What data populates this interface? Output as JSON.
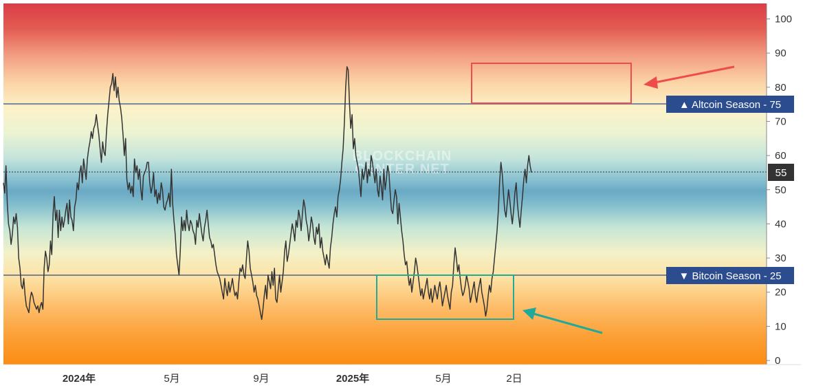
{
  "chart_data": {
    "type": "line",
    "x_tick_labels": [
      "2024年",
      "5月",
      "9月",
      "2025年",
      "5月",
      "2日"
    ],
    "y_ticks": [
      0,
      10,
      20,
      30,
      40,
      50,
      60,
      70,
      80,
      90,
      100
    ],
    "ylim": [
      0,
      100
    ],
    "grid": false,
    "current_value_label": "55",
    "thresholds": [
      {
        "label": "▲ Altcoin Season - 75",
        "value": 75
      },
      {
        "label": "▼ Bitcoin Season - 25",
        "value": 25
      }
    ],
    "watermark": [
      "BLOCKCHAIN",
      "CENTER.NET"
    ],
    "series": [
      {
        "values": [
          52,
          49,
          57,
          46,
          40,
          38,
          34,
          37,
          42,
          40,
          43,
          39,
          30,
          27,
          22,
          21,
          24,
          19,
          16,
          15,
          14,
          18,
          20,
          19,
          17,
          16,
          15,
          16,
          14,
          16,
          17,
          15,
          27,
          32,
          30,
          26,
          28,
          35,
          31,
          43,
          48,
          41,
          44,
          36,
          44,
          38,
          42,
          39,
          41,
          44,
          46,
          40,
          47,
          42,
          41,
          38,
          45,
          47,
          52,
          50,
          55,
          57,
          52,
          59,
          56,
          53,
          59,
          62,
          64,
          67,
          65,
          68,
          69,
          72,
          69,
          66,
          62,
          58,
          64,
          61,
          60,
          67,
          72,
          76,
          80,
          81,
          84,
          79,
          83,
          77,
          80,
          76,
          74,
          71,
          66,
          60,
          65,
          53,
          50,
          52,
          49,
          51,
          48,
          59,
          55,
          57,
          53,
          56,
          50,
          47,
          54,
          55,
          56,
          58,
          58,
          52,
          49,
          51,
          55,
          48,
          50,
          46,
          49,
          47,
          52,
          50,
          45,
          44,
          46,
          47,
          49,
          45,
          56,
          46,
          41,
          37,
          31,
          28,
          25,
          32,
          42,
          38,
          41,
          38,
          44,
          40,
          38,
          41,
          40,
          38,
          37,
          34,
          41,
          39,
          43,
          40,
          37,
          35,
          39,
          41,
          44,
          40,
          36,
          35,
          33,
          34,
          31,
          28,
          26,
          25,
          24,
          22,
          20,
          18,
          24,
          21,
          19,
          23,
          20,
          22,
          24,
          21,
          19,
          20,
          18,
          23,
          27,
          26,
          28,
          25,
          24,
          30,
          35,
          32,
          27,
          25,
          23,
          20,
          22,
          19,
          18,
          16,
          14,
          12,
          15,
          19,
          22,
          18,
          25,
          23,
          21,
          26,
          22,
          27,
          18,
          17,
          21,
          25,
          20,
          23,
          26,
          32,
          35,
          29,
          31,
          34,
          37,
          40,
          38,
          35,
          41,
          39,
          44,
          42,
          38,
          43,
          47,
          45,
          41,
          39,
          35,
          38,
          42,
          40,
          36,
          34,
          39,
          37,
          40,
          33,
          36,
          32,
          30,
          28,
          31,
          29,
          27,
          33,
          36,
          40,
          43,
          45,
          42,
          48,
          50,
          53,
          58,
          62,
          70,
          80,
          86,
          85,
          75,
          68,
          72,
          62,
          65,
          60,
          58,
          56,
          52,
          48,
          56,
          53,
          55,
          58,
          52,
          56,
          54,
          60,
          58,
          55,
          52,
          56,
          50,
          48,
          54,
          51,
          47,
          56,
          50,
          53,
          57,
          55,
          49,
          44,
          43,
          47,
          50,
          48,
          40,
          46,
          42,
          38,
          35,
          31,
          28,
          29,
          25,
          22,
          24,
          20,
          23,
          26,
          30,
          28,
          25,
          22,
          19,
          21,
          18,
          20,
          22,
          24,
          20,
          18,
          21,
          17,
          19,
          22,
          20,
          18,
          21,
          23,
          20,
          16,
          18,
          20,
          22,
          19,
          17,
          15,
          20,
          22,
          28,
          33,
          30,
          26,
          28,
          24,
          21,
          19,
          20,
          22,
          25,
          23,
          21,
          17,
          19,
          21,
          23,
          19,
          17,
          20,
          22,
          24,
          20,
          18,
          16,
          13,
          15,
          19,
          22,
          20,
          24,
          26,
          30,
          34,
          38,
          44,
          52,
          58,
          55,
          49,
          44,
          42,
          46,
          50,
          47,
          43,
          40,
          44,
          49,
          52,
          46,
          42,
          39,
          44,
          48,
          53,
          56,
          52,
          57,
          60,
          57,
          55
        ]
      }
    ]
  }
}
